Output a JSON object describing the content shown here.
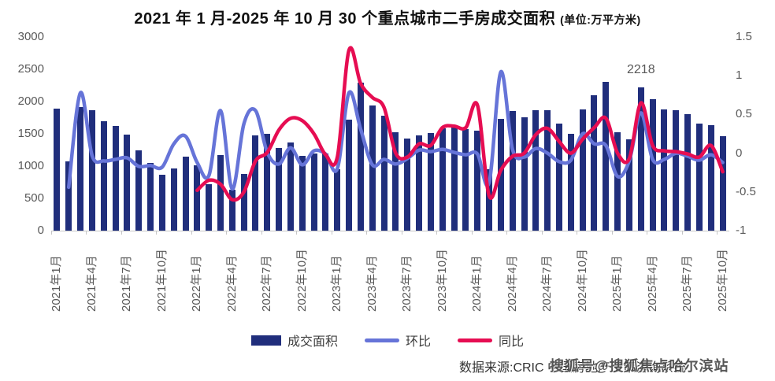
{
  "title": {
    "main": "2021 年 1 月-2025 年 10 月 30 个重点城市二手房成交面积",
    "unit": "(单位:万平方米)"
  },
  "axes": {
    "left_ticks": [
      3000,
      2500,
      2000,
      1500,
      1000,
      500,
      0
    ],
    "right_ticks": [
      1.5,
      1,
      0.5,
      0,
      -0.5,
      -1
    ],
    "left_min": 0,
    "left_max": 3000,
    "right_min": -1,
    "right_max": 1.5
  },
  "annotation": {
    "text": "2218",
    "month": "2025年3月"
  },
  "legend": [
    {
      "label": "成交面积",
      "type": "bar",
      "color": "#202e7c"
    },
    {
      "label": "环比",
      "type": "line",
      "color": "#6674d8"
    },
    {
      "label": "同比",
      "type": "line",
      "color": "#e60d52"
    }
  ],
  "footer": {
    "source": "数据来源:CRIC 中国房地产决策咨询系统",
    "watermark": "搜狐号@搜狐焦点哈尔滨站"
  },
  "chart_data": {
    "type": "combo-bar-line",
    "title": "2021年1月-2025年10月 30个重点城市二手房成交面积(万平方米)",
    "categories": [
      "2021年1月",
      "2021年2月",
      "2021年3月",
      "2021年4月",
      "2021年5月",
      "2021年6月",
      "2021年7月",
      "2021年8月",
      "2021年9月",
      "2021年10月",
      "2021年11月",
      "2021年12月",
      "2022年1月",
      "2022年2月",
      "2022年3月",
      "2022年4月",
      "2022年5月",
      "2022年6月",
      "2022年7月",
      "2022年8月",
      "2022年9月",
      "2022年10月",
      "2022年11月",
      "2022年12月",
      "2023年1月",
      "2023年2月",
      "2023年3月",
      "2023年4月",
      "2023年5月",
      "2023年6月",
      "2023年7月",
      "2023年8月",
      "2023年9月",
      "2023年10月",
      "2023年11月",
      "2023年12月",
      "2024年1月",
      "2024年2月",
      "2024年3月",
      "2024年4月",
      "2024年5月",
      "2024年6月",
      "2024年7月",
      "2024年8月",
      "2024年9月",
      "2024年10月",
      "2024年11月",
      "2024年12月",
      "2025年1月",
      "2025年2月",
      "2025年3月",
      "2025年4月",
      "2025年5月",
      "2025年6月",
      "2025年7月",
      "2025年8月",
      "2025年9月",
      "2025年10月"
    ],
    "x_tick_label_indices": [
      0,
      3,
      6,
      9,
      12,
      15,
      18,
      21,
      24,
      27,
      30,
      33,
      36,
      39,
      42,
      45,
      48,
      51,
      54,
      57
    ],
    "series": [
      {
        "name": "成交面积",
        "type": "bar",
        "axis": "left",
        "color": "#202e7c",
        "values": [
          1890,
          1070,
          1920,
          1870,
          1690,
          1620,
          1490,
          1240,
          1050,
          860,
          960,
          1150,
          1010,
          720,
          1170,
          630,
          880,
          1480,
          1500,
          1280,
          1370,
          1160,
          1200,
          1190,
          950,
          1720,
          2290,
          1935,
          1780,
          1530,
          1430,
          1480,
          1510,
          1590,
          1610,
          1570,
          1550,
          950,
          1730,
          1850,
          1760,
          1870,
          1860,
          1660,
          1500,
          1880,
          2100,
          2310,
          1530,
          1420,
          2218,
          2040,
          1880,
          1870,
          1810,
          1660,
          1640,
          1460
        ]
      },
      {
        "name": "环比",
        "type": "line",
        "axis": "right",
        "color": "#6674d8",
        "values": [
          null,
          -0.44,
          0.78,
          -0.03,
          -0.1,
          -0.08,
          -0.06,
          -0.17,
          -0.16,
          -0.18,
          0.12,
          0.22,
          -0.12,
          -0.29,
          0.55,
          -0.46,
          0.38,
          0.55,
          0.01,
          -0.14,
          0.07,
          -0.15,
          0.03,
          -0.01,
          -0.2,
          0.78,
          0.31,
          -0.15,
          -0.08,
          -0.14,
          -0.07,
          0.04,
          0.02,
          0.05,
          0.01,
          -0.02,
          -0.01,
          -0.38,
          1.05,
          0.05,
          -0.05,
          0.06,
          0.0,
          -0.11,
          -0.09,
          0.25,
          0.12,
          0.1,
          -0.3,
          -0.1,
          0.52,
          -0.08,
          -0.08,
          0.0,
          -0.04,
          -0.09,
          -0.02,
          -0.12
        ]
      },
      {
        "name": "同比",
        "type": "line",
        "axis": "right",
        "color": "#e60d52",
        "values": [
          null,
          null,
          null,
          null,
          null,
          null,
          null,
          null,
          null,
          null,
          null,
          null,
          -0.48,
          -0.35,
          -0.4,
          -0.6,
          -0.5,
          -0.1,
          0.01,
          0.3,
          0.45,
          0.42,
          0.25,
          -0.02,
          -0.05,
          1.33,
          0.9,
          0.72,
          0.59,
          0.0,
          -0.05,
          0.12,
          0.1,
          0.33,
          0.35,
          0.33,
          0.62,
          -0.55,
          -0.22,
          -0.04,
          0.0,
          0.24,
          0.32,
          0.15,
          0.0,
          0.18,
          0.33,
          0.45,
          0.0,
          -0.07,
          0.65,
          0.1,
          0.03,
          0.02,
          -0.01,
          -0.05,
          0.1,
          -0.24
        ]
      }
    ],
    "annotations": [
      {
        "index": 50,
        "text": "2218"
      }
    ],
    "layout_hints": {
      "left_axis_range": [
        0,
        3000
      ],
      "right_axis_range": [
        -1,
        1.5
      ],
      "gridlines": false,
      "legend_position": "bottom"
    }
  }
}
